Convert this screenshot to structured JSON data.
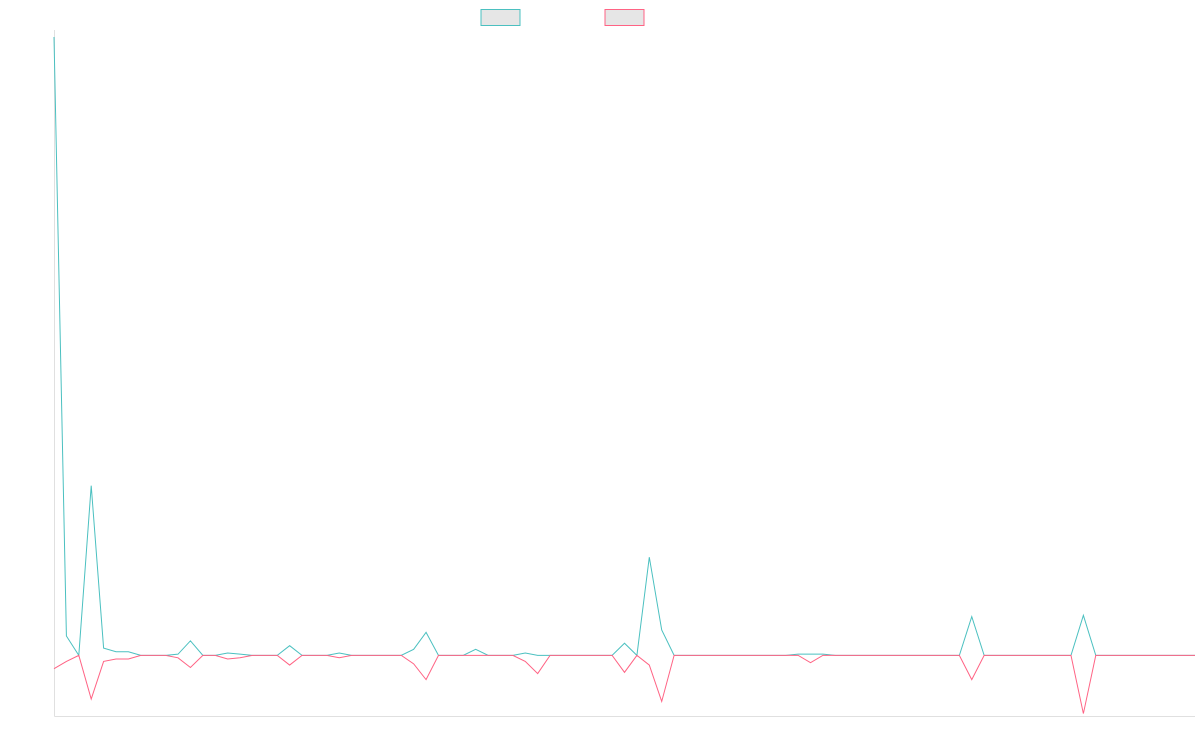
{
  "chart_data": {
    "type": "line",
    "title": "",
    "xlabel": "",
    "ylabel": "",
    "grid": false,
    "legend_position": "top-center",
    "x": [
      0,
      1,
      2,
      3,
      4,
      5,
      6,
      7,
      8,
      9,
      10,
      11,
      12,
      13,
      14,
      15,
      16,
      17,
      18,
      19,
      20,
      21,
      22,
      23,
      24,
      25,
      26,
      27,
      28,
      29,
      30,
      31,
      32,
      33,
      34,
      35,
      36,
      37,
      38,
      39,
      40,
      41,
      42,
      43,
      44,
      45,
      46,
      47,
      48,
      49,
      50,
      51,
      52,
      53,
      54,
      55,
      56,
      57,
      58,
      59,
      60,
      61,
      62,
      63,
      64,
      65,
      66,
      67,
      68,
      69,
      70,
      71,
      72,
      73,
      74,
      75,
      76,
      77,
      78,
      79,
      80,
      81,
      82,
      83,
      84,
      85,
      86,
      87,
      88,
      89,
      90,
      91,
      92
    ],
    "ylim": [
      -5,
      51
    ],
    "series": [
      {
        "color": "#4bc0c0",
        "values": [
          51,
          1.6,
          0,
          14,
          0.6,
          0.3,
          0.3,
          0,
          0,
          0,
          0.1,
          1.2,
          0,
          0,
          0.2,
          0.1,
          0,
          0,
          0,
          0.8,
          0,
          0,
          0,
          0.2,
          0,
          0,
          0,
          0,
          0,
          0.5,
          1.9,
          0,
          0,
          0,
          0.5,
          0,
          0,
          0,
          0.2,
          0,
          0,
          0,
          0,
          0,
          0,
          0,
          1,
          0,
          8.1,
          2.1,
          0,
          0,
          0,
          0,
          0,
          0,
          0,
          0,
          0,
          0,
          0.1,
          0.1,
          0.1,
          0,
          0,
          0,
          0,
          0,
          0,
          0,
          0,
          0,
          0,
          0,
          3.2,
          0,
          0,
          0,
          0,
          0,
          0,
          0,
          0,
          3.3,
          0,
          0,
          0,
          0,
          0,
          0,
          0,
          0,
          0
        ]
      },
      {
        "color": "#ff6384",
        "values": [
          -1.1,
          -0.5,
          0,
          -3.6,
          -0.5,
          -0.3,
          -0.3,
          0,
          0,
          0,
          -0.2,
          -1,
          0,
          0,
          -0.3,
          -0.2,
          0,
          0,
          0,
          -0.8,
          0,
          0,
          0,
          -0.2,
          0,
          0,
          0,
          0,
          0,
          -0.7,
          -2,
          0,
          0,
          0,
          0,
          0,
          0,
          0,
          -0.5,
          -1.5,
          0,
          0,
          0,
          0,
          0,
          0,
          -1.4,
          0,
          -0.8,
          -3.8,
          0,
          0,
          0,
          0,
          0,
          0,
          0,
          0,
          0,
          0,
          0,
          -0.6,
          0,
          0,
          0,
          0,
          0,
          0,
          0,
          0,
          0,
          0,
          0,
          0,
          -2,
          0,
          0,
          0,
          0,
          0,
          0,
          0,
          0,
          -4.8,
          0,
          0,
          0,
          0,
          0,
          0,
          0,
          0,
          0
        ]
      }
    ]
  }
}
